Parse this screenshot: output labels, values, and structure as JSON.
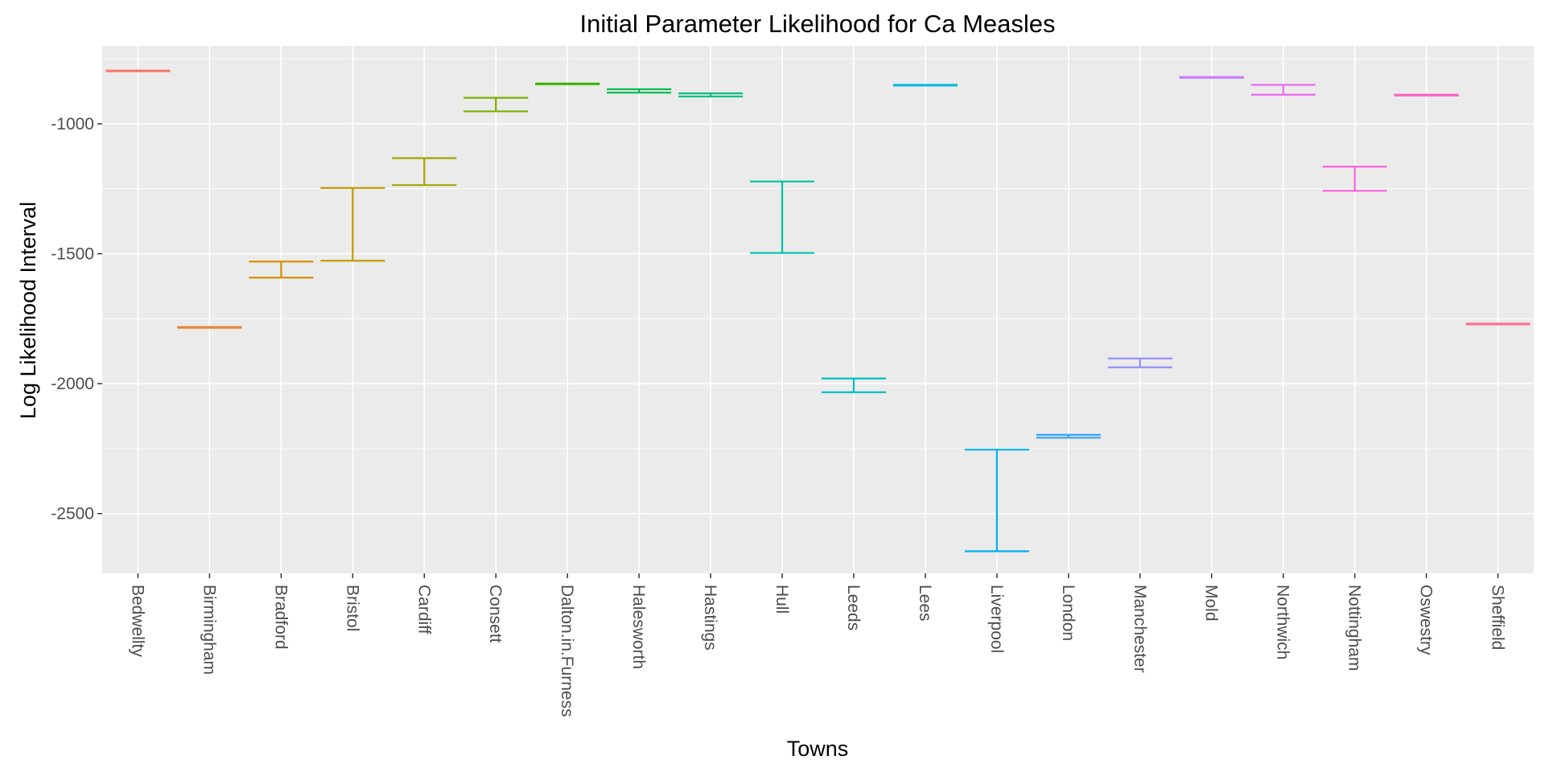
{
  "chart_data": {
    "type": "errorbar",
    "title": "Initial Parameter Likelihood for Ca Measles",
    "xlabel": "Towns",
    "ylabel": "Log Likelihood Interval",
    "ylim": [
      -2730,
      -700
    ],
    "yticks": [
      -1000,
      -1500,
      -2000,
      -2500
    ],
    "grid": true,
    "legend": "none",
    "panel_color": "#ebebeb",
    "grid_color": "#ffffff",
    "categories": [
      "Bedwellty",
      "Birmingham",
      "Bradford",
      "Bristol",
      "Cardiff",
      "Consett",
      "Dalton.in.Furness",
      "Halesworth",
      "Hastings",
      "Hull",
      "Leeds",
      "Lees",
      "Liverpool",
      "London",
      "Manchester",
      "Mold",
      "Northwich",
      "Nottingham",
      "Oswestry",
      "Sheffield"
    ],
    "intervals": [
      {
        "town": "Bedwellty",
        "upper": -795,
        "lower": -798,
        "color": "#F8766D"
      },
      {
        "town": "Birmingham",
        "upper": -1782,
        "lower": -1785,
        "color": "#EA8331"
      },
      {
        "town": "Bradford",
        "upper": -1530,
        "lower": -1592,
        "color": "#D89000"
      },
      {
        "town": "Bristol",
        "upper": -1247,
        "lower": -1527,
        "color": "#C09B00"
      },
      {
        "town": "Cardiff",
        "upper": -1132,
        "lower": -1236,
        "color": "#A3A500"
      },
      {
        "town": "Consett",
        "upper": -900,
        "lower": -952,
        "color": "#7CAE00"
      },
      {
        "town": "Dalton.in.Furness",
        "upper": -845,
        "lower": -848,
        "color": "#39B600"
      },
      {
        "town": "Halesworth",
        "upper": -867,
        "lower": -880,
        "color": "#00BB4E"
      },
      {
        "town": "Hastings",
        "upper": -883,
        "lower": -895,
        "color": "#00BF7D"
      },
      {
        "town": "Hull",
        "upper": -1222,
        "lower": -1497,
        "color": "#00C1A3"
      },
      {
        "town": "Leeds",
        "upper": -1980,
        "lower": -2033,
        "color": "#00BFC4"
      },
      {
        "town": "Lees",
        "upper": -850,
        "lower": -853,
        "color": "#00BAE0"
      },
      {
        "town": "Liverpool",
        "upper": -2254,
        "lower": -2645,
        "color": "#00B0F6"
      },
      {
        "town": "London",
        "upper": -2197,
        "lower": -2208,
        "color": "#35A2FF"
      },
      {
        "town": "Manchester",
        "upper": -1903,
        "lower": -1937,
        "color": "#9590FF"
      },
      {
        "town": "Mold",
        "upper": -820,
        "lower": -823,
        "color": "#C77CFF"
      },
      {
        "town": "Northwich",
        "upper": -850,
        "lower": -888,
        "color": "#E76BF3"
      },
      {
        "town": "Nottingham",
        "upper": -1165,
        "lower": -1258,
        "color": "#FA62DB"
      },
      {
        "town": "Oswestry",
        "upper": -888,
        "lower": -891,
        "color": "#FF62BC"
      },
      {
        "town": "Sheffield",
        "upper": -1769,
        "lower": -1772,
        "color": "#FF6C91"
      }
    ]
  }
}
